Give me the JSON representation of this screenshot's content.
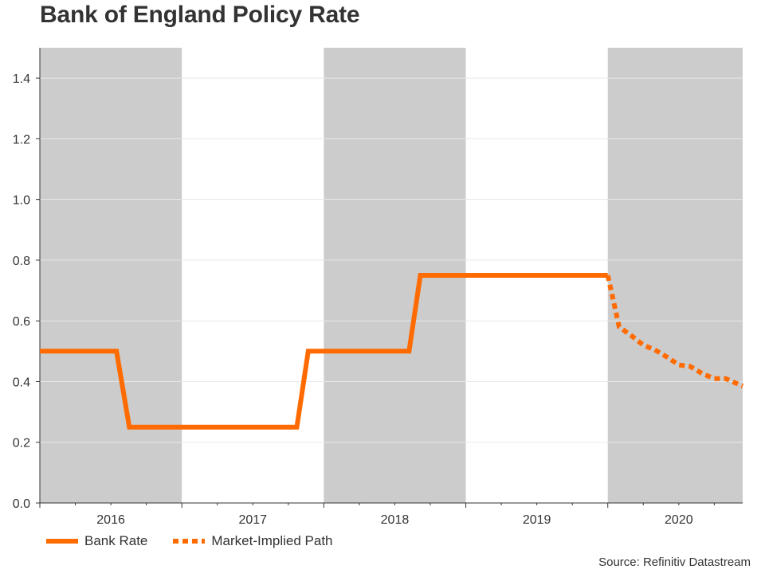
{
  "title": "Bank of England Policy Rate",
  "source": "Source: Refinitiv Datastream",
  "colors": {
    "line": "#ff6b00",
    "shade": "#cccccc",
    "grid": "#e8e8e8",
    "axis": "#333333"
  },
  "chart_data": {
    "type": "line",
    "title": "Bank of England Policy Rate",
    "xlabel": "",
    "ylabel": "",
    "xlim": [
      2015.5,
      2020.45
    ],
    "ylim": [
      0,
      1.5
    ],
    "yticks": [
      0.0,
      0.2,
      0.4,
      0.6,
      0.8,
      1.0,
      1.2,
      1.4
    ],
    "ytick_labels": [
      "0.0",
      "0.2",
      "0.4",
      "0.6",
      "0.8",
      "1.0",
      "1.2",
      "1.4"
    ],
    "xticks": [
      2016,
      2017,
      2018,
      2019,
      2020
    ],
    "xtick_labels": [
      "2016",
      "2017",
      "2018",
      "2019",
      "2020"
    ],
    "shaded_years": [
      2016,
      2018,
      2020
    ],
    "series": [
      {
        "name": "Bank Rate",
        "style": "solid",
        "x": [
          2015.5,
          2016.04,
          2016.13,
          2017.31,
          2017.39,
          2018.1,
          2018.18,
          2019.5
        ],
        "y": [
          0.5,
          0.5,
          0.25,
          0.25,
          0.5,
          0.5,
          0.75,
          0.75
        ]
      },
      {
        "name": "Market-Implied Path",
        "style": "dotted",
        "x": [
          2019.5,
          2019.58,
          2019.67,
          2019.75,
          2019.83,
          2019.92,
          2020.0,
          2020.08,
          2020.17,
          2020.25,
          2020.33,
          2020.45
        ],
        "y": [
          0.75,
          0.58,
          0.55,
          0.52,
          0.505,
          0.48,
          0.455,
          0.45,
          0.425,
          0.41,
          0.41,
          0.385
        ]
      }
    ],
    "legend": [
      "Bank Rate",
      "Market-Implied Path"
    ],
    "legend_position": "bottom-left"
  }
}
